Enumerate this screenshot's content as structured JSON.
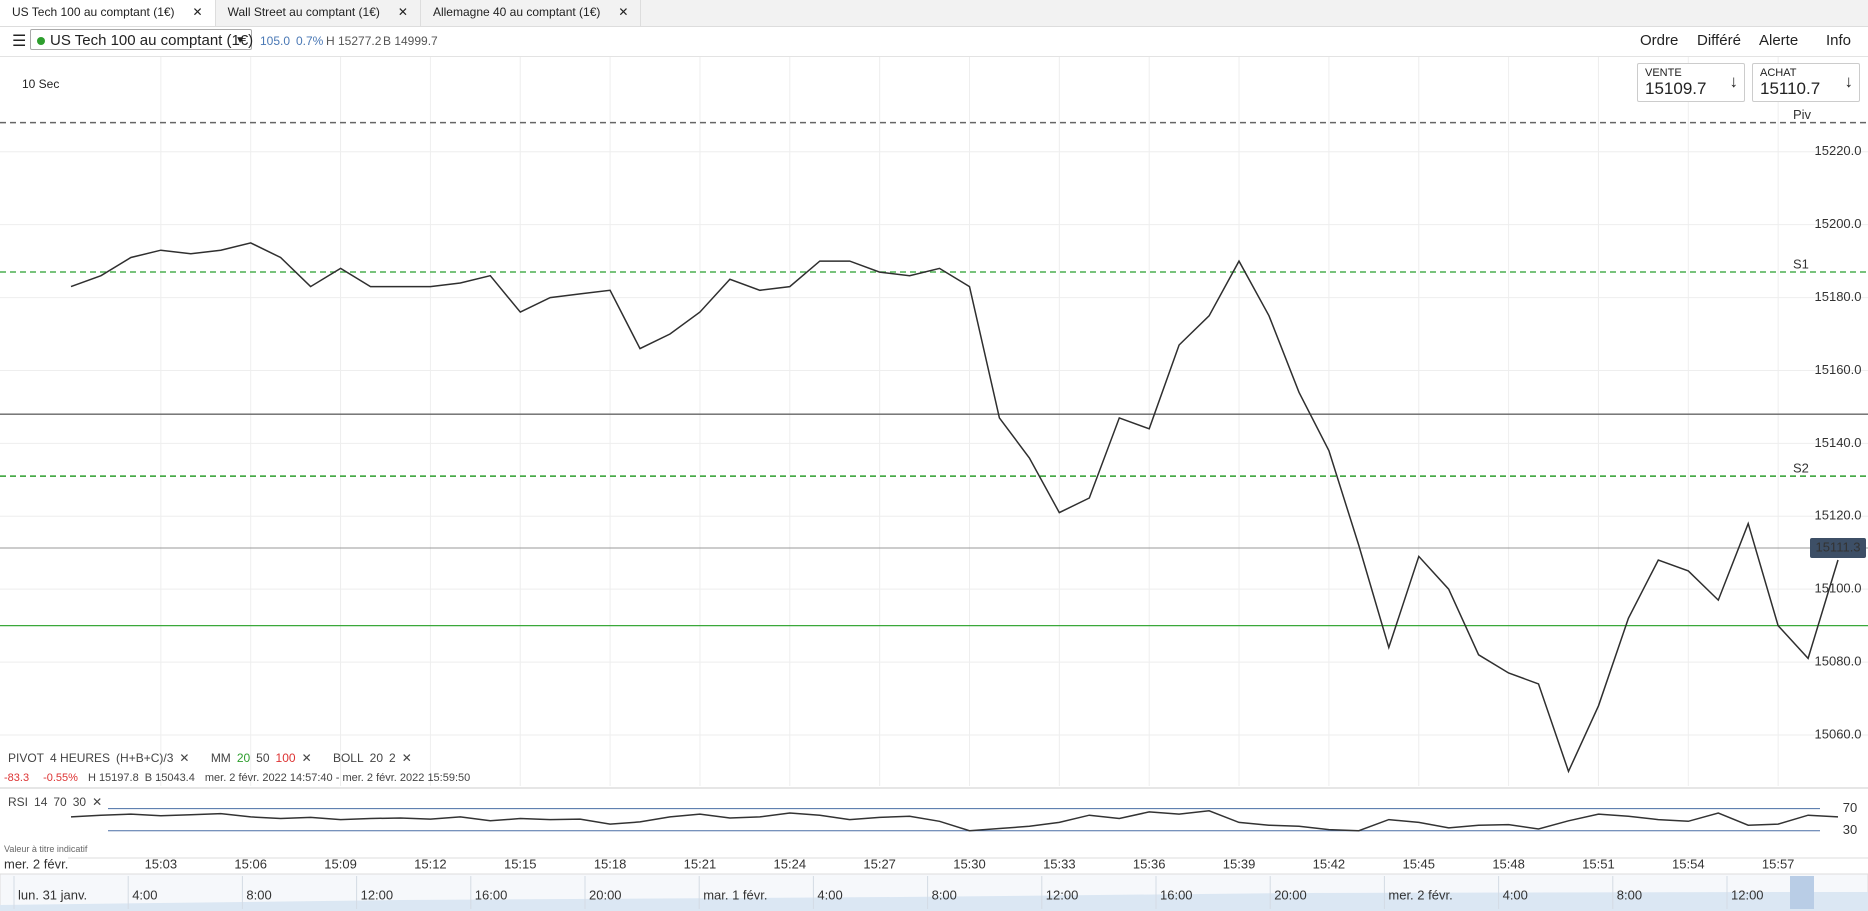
{
  "tabs": [
    "US Tech 100 au comptant (1€)",
    "Wall Street au comptant (1€)",
    "Allemagne 40 au comptant (1€)"
  ],
  "toolbar": {
    "instrument": "US Tech 100 au comptant (1€)",
    "change": "105.0",
    "change_pct": "0.7%",
    "high": "H 15277.2",
    "low": "B 14999.7",
    "actions": [
      "Ordre",
      "Différé",
      "Alerte",
      "Info"
    ]
  },
  "quotes": [
    {
      "label": "VENTE",
      "price": "15109.7"
    },
    {
      "label": "ACHAT",
      "price": "15110.7"
    }
  ],
  "interval": "10 Sec",
  "indicators": {
    "pivot": [
      "PIVOT",
      "4 HEURES",
      "(H+B+C)/3"
    ],
    "mm": [
      "MM",
      "20",
      "50",
      "100"
    ],
    "boll": [
      "BOLL",
      "20",
      "2"
    ],
    "stats": [
      "-83.3",
      "-0.55%",
      "H 15197.8",
      "B 15043.4",
      "mer. 2 févr. 2022 14:57:40 - mer. 2 févr. 2022 15:59:50"
    ]
  },
  "rsi_legend": [
    "RSI",
    "14",
    "70",
    "30"
  ],
  "disclaimer": "Valeur à titre indicatif",
  "navigator": [
    "lun. 31 janv.",
    "4:00",
    "8:00",
    "12:00",
    "16:00",
    "20:00",
    "mar. 1 févr.",
    "4:00",
    "8:00",
    "12:00",
    "16:00",
    "20:00",
    "mer. 2 févr.",
    "4:00",
    "8:00",
    "12:00"
  ],
  "chart_data": [
    {
      "type": "line",
      "date_label": "mer. 2 févr.",
      "color": "#2f2f2f",
      "categories": [
        null,
        null,
        null,
        "15:03",
        null,
        null,
        "15:06",
        null,
        null,
        "15:09",
        null,
        null,
        "15:12",
        null,
        null,
        "15:15",
        null,
        null,
        "15:18",
        null,
        null,
        "15:21",
        null,
        null,
        "15:24",
        null,
        null,
        "15:27",
        null,
        null,
        "15:30",
        null,
        null,
        "15:33",
        null,
        null,
        "15:36",
        null,
        null,
        "15:39",
        null,
        null,
        "15:42",
        null,
        null,
        "15:45",
        null,
        null,
        "15:48",
        null,
        null,
        "15:51",
        null,
        null,
        "15:54",
        null,
        null,
        "15:57",
        null,
        null
      ],
      "values": [
        15183,
        15186,
        15191,
        15193,
        15192,
        15193,
        15195,
        15191,
        15183,
        15188,
        15183,
        15183,
        15183,
        15184,
        15186,
        15176,
        15180,
        15181,
        15182,
        15166,
        15170,
        15176,
        15185,
        15182,
        15183,
        15190,
        15190,
        15187,
        15186,
        15188,
        15183,
        15147,
        15136,
        15121,
        15125,
        15147,
        15144,
        15167,
        15175,
        15190,
        15175,
        15154,
        15138,
        15112,
        15084,
        15109,
        15100,
        15082,
        15077,
        15074,
        15050,
        15068,
        15092,
        15108,
        15105,
        15097,
        15118,
        15090,
        15081,
        15108
      ],
      "ylim": [
        15246,
        15046
      ],
      "yticks": [
        {
          "value": 15220,
          "label": "15220.0"
        },
        {
          "value": 15200,
          "label": "15200.0"
        },
        {
          "value": 15180,
          "label": "15180.0"
        },
        {
          "value": 15160,
          "label": "15160.0"
        },
        {
          "value": 15140,
          "label": "15140.0"
        },
        {
          "value": 15120,
          "label": "15120.0"
        },
        {
          "value": 15100,
          "label": "15100.0"
        },
        {
          "value": 15080,
          "label": "15080.0"
        },
        {
          "value": 15060,
          "label": "15060.0"
        }
      ],
      "pivot_levels": [
        {
          "label": "Piv",
          "value": 15228,
          "color": "#666666"
        },
        {
          "label": "S1",
          "value": 15187,
          "color": "#4caf50"
        },
        {
          "label": "S2",
          "value": 15131,
          "color": "#2e9e2e"
        }
      ],
      "price_lines": [
        {
          "value": 15148,
          "color": "#666666"
        },
        {
          "value": 15090,
          "color": "#3aa83a"
        }
      ],
      "last_price": 15111.3,
      "grid": true
    },
    {
      "type": "line",
      "color": "#333333",
      "values": [
        55,
        58,
        60,
        57,
        59,
        61,
        55,
        52,
        54,
        50,
        52,
        53,
        51,
        55,
        48,
        52,
        50,
        51,
        42,
        46,
        55,
        60,
        53,
        55,
        62,
        58,
        50,
        54,
        56,
        47,
        30,
        34,
        38,
        45,
        58,
        52,
        64,
        60,
        66,
        45,
        40,
        38,
        32,
        30,
        50,
        45,
        35,
        40,
        41,
        33,
        48,
        60,
        56,
        50,
        47,
        62,
        40,
        42,
        58,
        55
      ],
      "ylim": [
        100,
        15
      ],
      "yticks": [
        70,
        30
      ],
      "tick_color": "#4a6fa5"
    }
  ]
}
